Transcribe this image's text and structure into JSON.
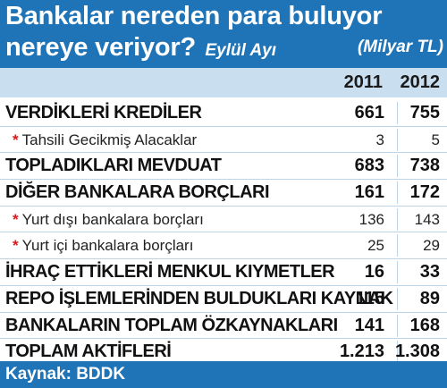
{
  "header": {
    "title_line1": "Bankalar nereden para buluyor",
    "title_line2": "nereye veriyor?",
    "period": "Eylül Ayı",
    "unit": "(Milyar TL)"
  },
  "years": [
    "2011",
    "2012"
  ],
  "rows": [
    {
      "label": "VERDİKLERİ KREDİLER",
      "star": "",
      "v2011": "661",
      "v2012": "755"
    },
    {
      "label": "Tahsili Gecikmiş Alacaklar",
      "star": "*",
      "v2011": "3",
      "v2012": "5"
    },
    {
      "label": "TOPLADIKLARI MEVDUAT",
      "star": "",
      "v2011": "683",
      "v2012": "738"
    },
    {
      "label": "DİĞER BANKALARA BORÇLARI",
      "star": "",
      "v2011": "161",
      "v2012": "172"
    },
    {
      "label": "Yurt dışı bankalara borçları",
      "star": "*",
      "v2011": "136",
      "v2012": "143"
    },
    {
      "label": "Yurt içi bankalara borçları",
      "star": "*",
      "v2011": "25",
      "v2012": "29"
    },
    {
      "label": "İHRAÇ ETTİKLERİ MENKUL KIYMETLER",
      "star": "",
      "v2011": "16",
      "v2012": "33"
    },
    {
      "label": "REPO İŞLEMLERİNDEN BULDUKLARI KAYNAK",
      "star": "",
      "v2011": "115",
      "v2012": "89"
    },
    {
      "label": "BANKALARIN TOPLAM ÖZKAYNAKLARI",
      "star": "",
      "v2011": "141",
      "v2012": "168"
    },
    {
      "label": "TOPLAM AKTİFLERİ",
      "star": "",
      "v2011": "1.213",
      "v2012": "1.308"
    }
  ],
  "footer": {
    "source": "Kaynak: BDDK"
  },
  "colors": {
    "header_bg": "#1f74b8",
    "year_bar_bg": "#c9dff0",
    "star": "#d8191b"
  }
}
